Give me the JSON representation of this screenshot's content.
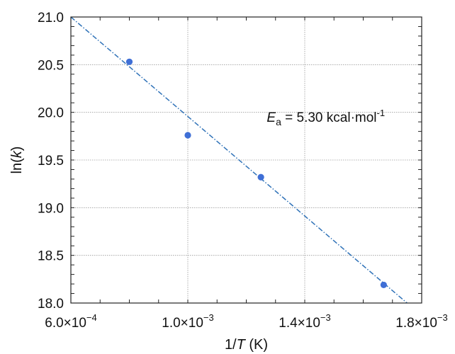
{
  "chart_data": {
    "type": "scatter",
    "xlabel": "1/T (K)",
    "ylabel": "ln(k)",
    "xlim": [
      0.0006,
      0.0018
    ],
    "ylim": [
      18.0,
      21.0
    ],
    "grid": true,
    "x_ticks": [
      {
        "value": 0.0006,
        "mantissa": "6.0",
        "exponent": "−4"
      },
      {
        "value": 0.001,
        "mantissa": "1.0",
        "exponent": "−3"
      },
      {
        "value": 0.0014,
        "mantissa": "1.4",
        "exponent": "−3"
      },
      {
        "value": 0.0018,
        "mantissa": "1.8",
        "exponent": "−3"
      }
    ],
    "y_ticks": [
      {
        "value": 18.0,
        "label": "18.0"
      },
      {
        "value": 18.5,
        "label": "18.5"
      },
      {
        "value": 19.0,
        "label": "19.0"
      },
      {
        "value": 19.5,
        "label": "19.5"
      },
      {
        "value": 20.0,
        "label": "20.0"
      },
      {
        "value": 20.5,
        "label": "20.5"
      },
      {
        "value": 21.0,
        "label": "21.0"
      }
    ],
    "points": [
      {
        "x": 0.0008,
        "y": 20.53
      },
      {
        "x": 0.001,
        "y": 19.76
      },
      {
        "x": 0.00125,
        "y": 19.32
      },
      {
        "x": 0.00167,
        "y": 18.19
      }
    ],
    "fit_line": {
      "x": [
        0.0006,
        0.00175
      ],
      "y": [
        21.0,
        18.0
      ],
      "style": "dashed"
    },
    "annotation": {
      "symbol": "E",
      "subscript": "a",
      "text": " = 5.30 kcal",
      "dot": "·",
      "unit": "mol",
      "exponent": "-1",
      "x": 0.00127,
      "y": 19.9
    },
    "colors": {
      "points": "#3f6fd6",
      "fit_line": "#2f72b8",
      "grid": "#9a9a9a",
      "axes": "#222222"
    }
  }
}
